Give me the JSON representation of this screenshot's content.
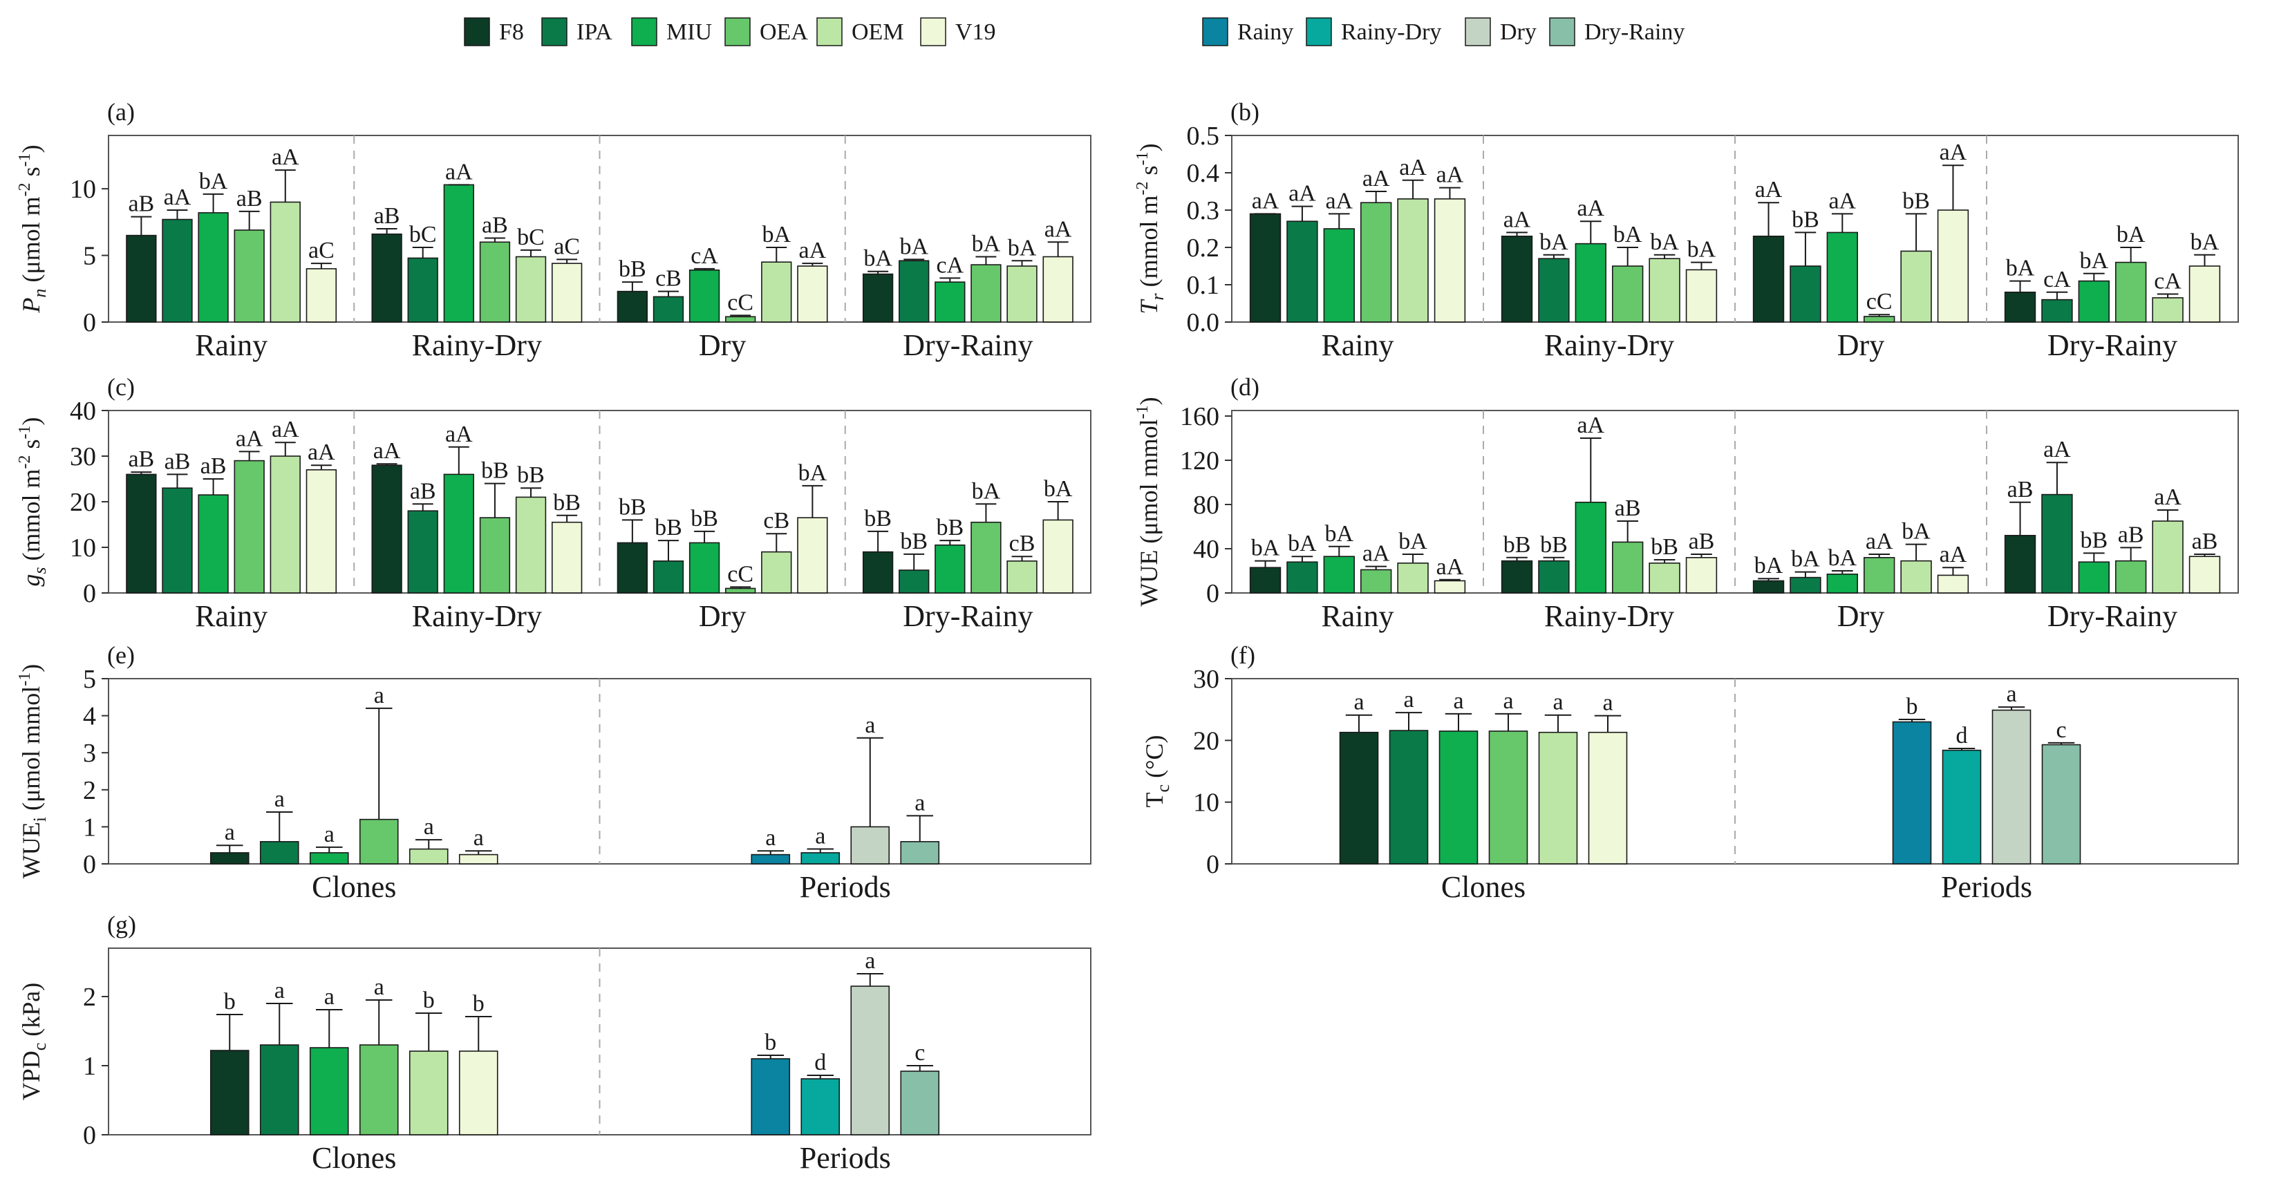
{
  "legend": {
    "clones": [
      {
        "name": "F8",
        "color": "#0c3b26"
      },
      {
        "name": "IPA",
        "color": "#0a7a48"
      },
      {
        "name": "MIU",
        "color": "#0fae4f"
      },
      {
        "name": "OEA",
        "color": "#67c76b"
      },
      {
        "name": "OEM",
        "color": "#bce6a5"
      },
      {
        "name": "V19",
        "color": "#eff8d8"
      }
    ],
    "periods": [
      {
        "name": "Rainy",
        "color": "#0a84a0"
      },
      {
        "name": "Rainy-Dry",
        "color": "#07a89e"
      },
      {
        "name": "Dry",
        "color": "#c4d4c4"
      },
      {
        "name": "Dry-Rainy",
        "color": "#88bfa8"
      }
    ]
  },
  "chart_data": [
    {
      "id": "a",
      "panel_label": "(a)",
      "type": "bar",
      "ylabel": {
        "base": "P",
        "sub": "n",
        "pre": " (μmol m",
        "sup1": "-2",
        "mid": " s",
        "sup2": "-1",
        "post": ")"
      },
      "ylim": [
        0,
        14
      ],
      "yticks": [
        0,
        5,
        10
      ],
      "groups": [
        "Rainy",
        "Rainy-Dry",
        "Dry",
        "Dry-Rainy"
      ],
      "series": [
        "F8",
        "IPA",
        "MIU",
        "OEA",
        "OEM",
        "V19"
      ],
      "values": [
        [
          6.5,
          7.7,
          8.2,
          6.9,
          9.0,
          4.0
        ],
        [
          6.6,
          4.8,
          10.3,
          6.0,
          4.9,
          4.4
        ],
        [
          2.3,
          1.9,
          3.9,
          0.4,
          4.5,
          4.2
        ],
        [
          3.6,
          4.6,
          3.0,
          4.3,
          4.2,
          4.9
        ]
      ],
      "errors": [
        [
          1.4,
          0.7,
          1.4,
          1.4,
          2.4,
          0.4
        ],
        [
          0.4,
          0.8,
          0.0,
          0.3,
          0.5,
          0.3
        ],
        [
          0.7,
          0.4,
          0.1,
          0.1,
          1.1,
          0.2
        ],
        [
          0.2,
          0.1,
          0.3,
          0.6,
          0.4,
          1.1
        ]
      ],
      "labels": [
        [
          "aB",
          "aA",
          "bA",
          "aB",
          "aA",
          "aC"
        ],
        [
          "aB",
          "bC",
          "aA",
          "aB",
          "bC",
          "aC"
        ],
        [
          "bB",
          "cB",
          "cA",
          "cC",
          "bA",
          "aA"
        ],
        [
          "bA",
          "bA",
          "cA",
          "bA",
          "bA",
          "aA"
        ]
      ]
    },
    {
      "id": "b",
      "panel_label": "(b)",
      "type": "bar",
      "ylabel": {
        "base": "T",
        "sub": "r",
        "pre": " (mmol m",
        "sup1": "-2",
        "mid": " s",
        "sup2": "-1",
        "post": ")"
      },
      "ylim": [
        0,
        0.5
      ],
      "yticks": [
        0.0,
        0.1,
        0.2,
        0.3,
        0.4,
        0.5
      ],
      "groups": [
        "Rainy",
        "Rainy-Dry",
        "Dry",
        "Dry-Rainy"
      ],
      "series": [
        "F8",
        "IPA",
        "MIU",
        "OEA",
        "OEM",
        "V19"
      ],
      "values": [
        [
          0.29,
          0.27,
          0.25,
          0.32,
          0.33,
          0.33
        ],
        [
          0.23,
          0.17,
          0.21,
          0.15,
          0.17,
          0.14
        ],
        [
          0.23,
          0.15,
          0.24,
          0.015,
          0.19,
          0.3
        ],
        [
          0.08,
          0.06,
          0.11,
          0.16,
          0.065,
          0.15
        ]
      ],
      "errors": [
        [
          0.0,
          0.04,
          0.04,
          0.03,
          0.05,
          0.03
        ],
        [
          0.01,
          0.01,
          0.06,
          0.05,
          0.01,
          0.02
        ],
        [
          0.09,
          0.09,
          0.05,
          0.005,
          0.1,
          0.12
        ],
        [
          0.03,
          0.02,
          0.02,
          0.04,
          0.01,
          0.03
        ]
      ],
      "labels": [
        [
          "aA",
          "aA",
          "aA",
          "aA",
          "aA",
          "aA"
        ],
        [
          "aA",
          "bA",
          "aA",
          "bA",
          "bA",
          "bA"
        ],
        [
          "aA",
          "bB",
          "aA",
          "cC",
          "bB",
          "aA"
        ],
        [
          "bA",
          "cA",
          "bA",
          "bA",
          "cA",
          "bA"
        ]
      ]
    },
    {
      "id": "c",
      "panel_label": "(c)",
      "type": "bar",
      "ylabel": {
        "base": "g",
        "sub": "s",
        "pre": " (mmol m",
        "sup1": "-2",
        "mid": " s",
        "sup2": "-1",
        "post": ")"
      },
      "ylim": [
        0,
        40
      ],
      "yticks": [
        0,
        10,
        20,
        30,
        40
      ],
      "groups": [
        "Rainy",
        "Rainy-Dry",
        "Dry",
        "Dry-Rainy"
      ],
      "series": [
        "F8",
        "IPA",
        "MIU",
        "OEA",
        "OEM",
        "V19"
      ],
      "values": [
        [
          26,
          23,
          21.5,
          29,
          30,
          27
        ],
        [
          28,
          18,
          26,
          16.5,
          21,
          15.5
        ],
        [
          11,
          7,
          11,
          1,
          9,
          16.5
        ],
        [
          9,
          5,
          10.5,
          15.5,
          7,
          16
        ]
      ],
      "errors": [
        [
          0.5,
          3,
          3.5,
          2,
          3,
          1
        ],
        [
          0.3,
          1.5,
          6,
          7.5,
          2,
          1.5
        ],
        [
          5,
          4.5,
          2.5,
          0.3,
          4,
          7
        ],
        [
          4.5,
          3.5,
          1,
          4,
          1,
          4
        ]
      ],
      "labels": [
        [
          "aB",
          "aB",
          "aB",
          "aA",
          "aA",
          "aA"
        ],
        [
          "aA",
          "aB",
          "aA",
          "bB",
          "bB",
          "bB"
        ],
        [
          "bB",
          "bB",
          "bB",
          "cC",
          "cB",
          "bA"
        ],
        [
          "bB",
          "bB",
          "bB",
          "bA",
          "cB",
          "bA"
        ]
      ]
    },
    {
      "id": "d",
      "panel_label": "(d)",
      "type": "bar",
      "ylabel": {
        "base": "WUE",
        "sub": "",
        "pre": " (μmol mmol",
        "sup1": "-1",
        "mid": "",
        "sup2": "",
        "post": ")"
      },
      "ylim": [
        0,
        165
      ],
      "yticks": [
        0,
        40,
        80,
        120,
        160
      ],
      "groups": [
        "Rainy",
        "Rainy-Dry",
        "Dry",
        "Dry-Rainy"
      ],
      "series": [
        "F8",
        "IPA",
        "MIU",
        "OEA",
        "OEM",
        "V19"
      ],
      "values": [
        [
          23,
          28,
          33,
          21,
          27,
          11
        ],
        [
          29,
          29,
          82,
          46,
          27,
          32
        ],
        [
          11,
          14,
          17,
          32,
          29,
          16
        ],
        [
          52,
          89,
          28,
          29,
          65,
          33
        ]
      ],
      "errors": [
        [
          6,
          5,
          9,
          3,
          8,
          1
        ],
        [
          3,
          3,
          58,
          19,
          3,
          3
        ],
        [
          2,
          5,
          3,
          3,
          15,
          7
        ],
        [
          30,
          29,
          8,
          12,
          10,
          2
        ]
      ],
      "labels": [
        [
          "bA",
          "bA",
          "bA",
          "aA",
          "bA",
          "aA"
        ],
        [
          "bB",
          "bB",
          "aA",
          "aB",
          "bB",
          "aB"
        ],
        [
          "bA",
          "bA",
          "bA",
          "aA",
          "bA",
          "aA"
        ],
        [
          "aB",
          "aA",
          "bB",
          "aB",
          "aA",
          "aB"
        ]
      ]
    },
    {
      "id": "e",
      "panel_label": "(e)",
      "type": "bar",
      "ylabel": {
        "base": "WUE",
        "sub": "i",
        "pre": " (μmol mmol",
        "sup1": "-1",
        "mid": "",
        "sup2": "",
        "post": ")"
      },
      "ylim": [
        0,
        5
      ],
      "yticks": [
        0,
        1,
        2,
        3,
        4,
        5
      ],
      "groups": [
        "Clones",
        "Periods"
      ],
      "categories": [
        [
          "F8",
          "IPA",
          "MIU",
          "OEA",
          "OEM",
          "V19"
        ],
        [
          "Rainy",
          "Rainy-Dry",
          "Dry",
          "Dry-Rainy"
        ]
      ],
      "values": [
        [
          0.3,
          0.6,
          0.3,
          1.2,
          0.4,
          0.25
        ],
        [
          0.25,
          0.3,
          1.0,
          0.6
        ]
      ],
      "errors": [
        [
          0.2,
          0.8,
          0.15,
          3.0,
          0.25,
          0.1
        ],
        [
          0.1,
          0.1,
          2.4,
          0.7
        ]
      ],
      "labels": [
        [
          "a",
          "a",
          "a",
          "a",
          "a",
          "a"
        ],
        [
          "a",
          "a",
          "a",
          "a"
        ]
      ]
    },
    {
      "id": "f",
      "panel_label": "(f)",
      "type": "bar",
      "ylabel": {
        "base": "T",
        "sub": "c",
        "pre": " (°C)",
        "sup1": "",
        "mid": "",
        "sup2": "",
        "post": ""
      },
      "ylim": [
        0,
        30
      ],
      "yticks": [
        0,
        10,
        20,
        30
      ],
      "groups": [
        "Clones",
        "Periods"
      ],
      "categories": [
        [
          "F8",
          "IPA",
          "MIU",
          "OEA",
          "OEM",
          "V19"
        ],
        [
          "Rainy",
          "Rainy-Dry",
          "Dry",
          "Dry-Rainy"
        ]
      ],
      "values": [
        [
          21.3,
          21.6,
          21.5,
          21.5,
          21.3,
          21.3
        ],
        [
          23.0,
          18.4,
          24.9,
          19.3
        ]
      ],
      "errors": [
        [
          2.8,
          2.9,
          2.8,
          2.8,
          2.8,
          2.7
        ],
        [
          0.4,
          0.3,
          0.5,
          0.3
        ]
      ],
      "labels": [
        [
          "a",
          "a",
          "a",
          "a",
          "a",
          "a"
        ],
        [
          "b",
          "d",
          "a",
          "c"
        ]
      ]
    },
    {
      "id": "g",
      "panel_label": "(g)",
      "type": "bar",
      "ylabel": {
        "base": "VPD",
        "sub": "c",
        "pre": " (kPa)",
        "sup1": "",
        "mid": "",
        "sup2": "",
        "post": ""
      },
      "ylim": [
        0,
        2.7
      ],
      "yticks": [
        0,
        1,
        2
      ],
      "groups": [
        "Clones",
        "Periods"
      ],
      "categories": [
        [
          "F8",
          "IPA",
          "MIU",
          "OEA",
          "OEM",
          "V19"
        ],
        [
          "Rainy",
          "Rainy-Dry",
          "Dry",
          "Dry-Rainy"
        ]
      ],
      "values": [
        [
          1.22,
          1.3,
          1.26,
          1.3,
          1.21,
          1.21
        ],
        [
          1.1,
          0.81,
          2.15,
          0.92
        ]
      ],
      "errors": [
        [
          0.52,
          0.6,
          0.55,
          0.65,
          0.55,
          0.5
        ],
        [
          0.05,
          0.05,
          0.18,
          0.08
        ]
      ],
      "labels": [
        [
          "b",
          "a",
          "a",
          "a",
          "b",
          "b"
        ],
        [
          "b",
          "d",
          "a",
          "c"
        ]
      ]
    }
  ]
}
